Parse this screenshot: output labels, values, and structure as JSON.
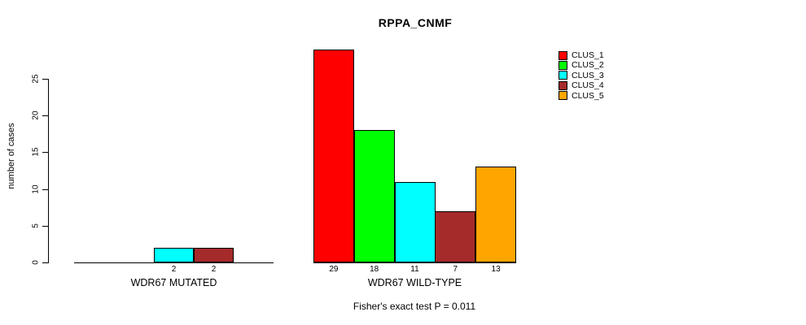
{
  "chart_data": {
    "type": "bar",
    "title": "RPPA_CNMF",
    "ylabel": "number of cases",
    "annotation": "Fisher's exact test P = 0.011",
    "yticks": [
      0,
      5,
      10,
      15,
      20,
      25
    ],
    "ylim": [
      0,
      29
    ],
    "grid": false,
    "legend_position": "top-right",
    "legend": [
      {
        "label": "CLUS_1",
        "color": "#FF0000"
      },
      {
        "label": "CLUS_2",
        "color": "#00FF00"
      },
      {
        "label": "CLUS_3",
        "color": "#00FFFF"
      },
      {
        "label": "CLUS_4",
        "color": "#A52A2A"
      },
      {
        "label": "CLUS_5",
        "color": "#FFA500"
      }
    ],
    "series_colors": [
      "#FF0000",
      "#00FF00",
      "#00FFFF",
      "#A52A2A",
      "#FFA500"
    ],
    "groups": [
      {
        "label": "WDR67 MUTATED",
        "values": [
          0,
          0,
          2,
          2,
          0
        ]
      },
      {
        "label": "WDR67 WILD-TYPE",
        "values": [
          29,
          18,
          11,
          7,
          13
        ]
      }
    ],
    "axis_color": "#000000",
    "bar_border_color": "#000000"
  }
}
